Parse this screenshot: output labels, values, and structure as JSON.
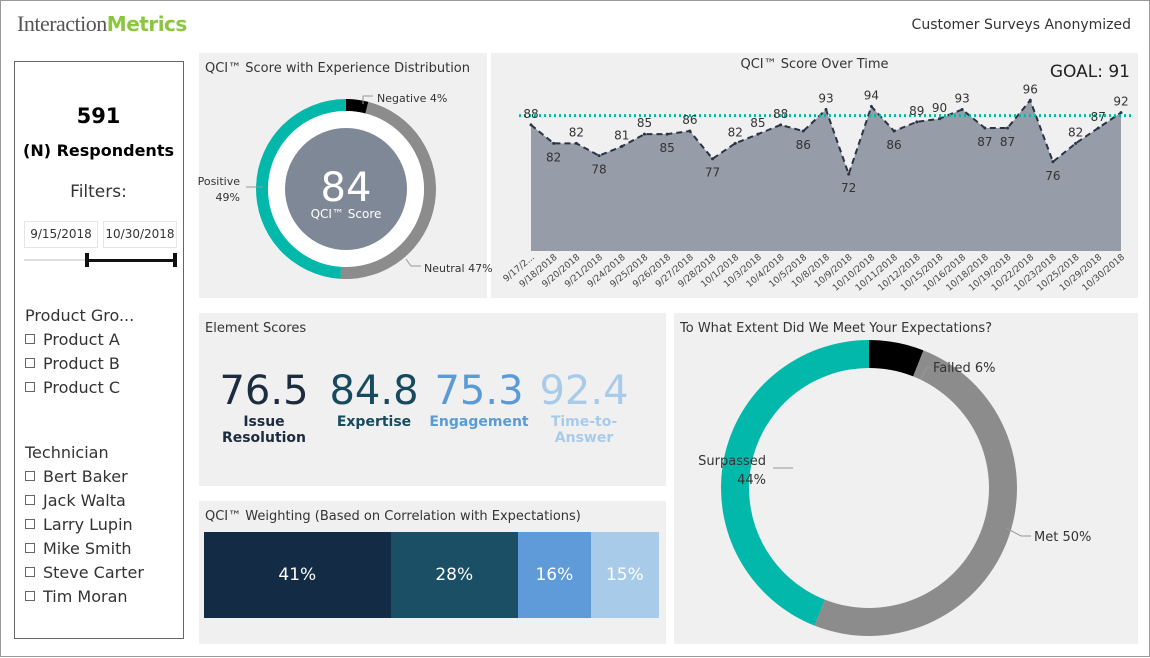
{
  "header": {
    "logo_part1": "Interaction",
    "logo_part2": "Metrics",
    "title": "Customer Surveys Anonymized"
  },
  "sidebar": {
    "respondents_count": "591",
    "respondents_label": "(N) Respondents",
    "filters_label": "Filters:",
    "date_start": "9/15/2018",
    "date_end": "10/30/2018",
    "slider_start_fraction": 0.41,
    "slider_end_fraction": 1.0,
    "product_group_label": "Product Gro...",
    "products": [
      "Product A",
      "Product B",
      "Product C"
    ],
    "technician_label": "Technician",
    "technicians": [
      "Bert Baker",
      "Jack Walta",
      "Larry Lupin",
      "Mike Smith",
      "Steve Carter",
      "Tim Moran"
    ]
  },
  "qci_donut": {
    "title": "QCI™ Score with Experience Distribution",
    "score": "84",
    "score_label": "QCI™ Score",
    "segments": [
      {
        "label": "Negative 4%",
        "value": 4,
        "color": "#000000"
      },
      {
        "label": "Neutral 47%",
        "value": 47,
        "color": "#8c8c8c"
      },
      {
        "label": "Positive",
        "pct": "49%",
        "value": 49,
        "color": "#01b8aa"
      }
    ]
  },
  "chart_data": [
    {
      "type": "area",
      "title": "QCI™ Score Over Time",
      "goal_label": "GOAL: 91",
      "goal": 91,
      "x": [
        "9/17/2...",
        "9/18/2018",
        "9/20/2018",
        "9/21/2018",
        "9/24/2018",
        "9/25/2018",
        "9/26/2018",
        "9/27/2018",
        "9/28/2018",
        "10/1/2018",
        "10/3/2018",
        "10/4/2018",
        "10/5/2018",
        "10/8/2018",
        "10/9/2018",
        "10/10/2018",
        "10/11/2018",
        "10/12/2018",
        "10/15/2018",
        "10/16/2018",
        "10/18/2018",
        "10/19/2018",
        "10/22/2018",
        "10/23/2018",
        "10/25/2018",
        "10/29/2018",
        "10/30/2018"
      ],
      "values": [
        88,
        82,
        82,
        78,
        81,
        85,
        85,
        86,
        77,
        82,
        85,
        88,
        86,
        93,
        72,
        94,
        86,
        89,
        90,
        93,
        87,
        87,
        96,
        76,
        82,
        87,
        92
      ],
      "ylim": [
        47,
        100
      ],
      "area_color": "#969ca8",
      "line_color": "#2b3445",
      "goal_color": "#01b8aa"
    }
  ],
  "element_scores": {
    "title": "Element Scores",
    "items": [
      {
        "value": "76.5",
        "label": "Issue Resolution",
        "color": "#1c2b3e"
      },
      {
        "value": "84.8",
        "label": "Expertise",
        "color": "#174a5e"
      },
      {
        "value": "75.3",
        "label": "Engagement",
        "color": "#5b9bd5"
      },
      {
        "value": "92.4",
        "label": "Time-to-Answer",
        "color": "#a9cbea"
      }
    ]
  },
  "weighting": {
    "title": "QCI™ Weighting (Based on Correlation with Expectations)",
    "segments": [
      {
        "label": "41%",
        "value": 41,
        "color": "#132b45"
      },
      {
        "label": "28%",
        "value": 28,
        "color": "#1a4f66"
      },
      {
        "label": "16%",
        "value": 16,
        "color": "#5f9bd8"
      },
      {
        "label": "15%",
        "value": 15,
        "color": "#a9cbea"
      }
    ]
  },
  "expectations": {
    "title": "To What Extent Did We Meet Your Expectations?",
    "segments": [
      {
        "label": "Failed 6%",
        "value": 6,
        "color": "#000000"
      },
      {
        "label": "Met 50%",
        "value": 50,
        "color": "#8c8c8c"
      },
      {
        "label": "Surpassed",
        "pct": "44%",
        "value": 44,
        "color": "#01b8aa"
      }
    ]
  }
}
